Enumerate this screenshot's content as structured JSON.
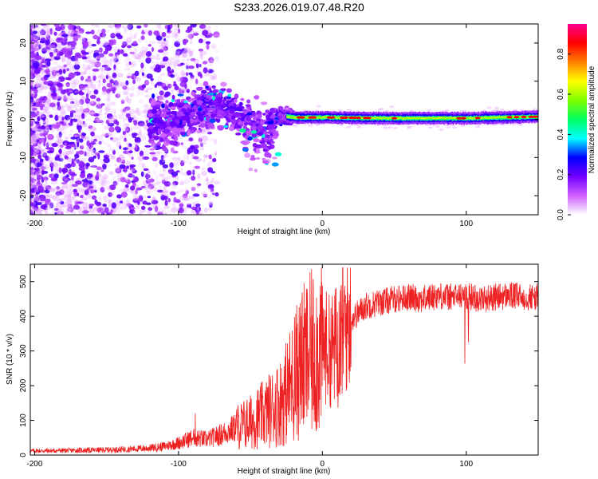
{
  "title": "S233.2026.019.07.48.R20",
  "chart_data": [
    {
      "type": "heatmap",
      "xlabel": "Height of straight line (km)",
      "ylabel": "Frequency (Hz)",
      "xlim": [
        -203,
        150
      ],
      "ylim": [
        -25,
        25
      ],
      "xticks": [
        -200,
        -100,
        0,
        100
      ],
      "yticks": [
        -20,
        -10,
        0,
        10,
        20
      ],
      "colorbar": {
        "label": "Normalized spectral amplitude",
        "range": [
          0,
          0.95
        ],
        "ticks": [
          0.0,
          0.2,
          0.4,
          0.6,
          0.8
        ],
        "colors": [
          "#ffffff",
          "#d060ff",
          "#7000ff",
          "#0000ff",
          "#00ffff",
          "#00ff60",
          "#80ff00",
          "#ffff00",
          "#ff8000",
          "#ff0000",
          "#ff0090"
        ]
      },
      "ridge": {
        "description_points_x": [
          -110,
          -100,
          -80,
          -60,
          -40,
          -30,
          -20,
          0,
          50,
          100,
          150
        ],
        "frequency_hz": [
          -1,
          0,
          4,
          2,
          -2,
          1,
          0.5,
          0.5,
          0.3,
          0.3,
          0.7
        ]
      }
    },
    {
      "type": "line",
      "xlabel": "Height of straight line (km)",
      "ylabel": "SNR (10 * v/v)",
      "xlim": [
        -203,
        150
      ],
      "ylim": [
        0,
        550
      ],
      "xticks": [
        -200,
        -100,
        0,
        100
      ],
      "yticks": [
        0,
        100,
        200,
        300,
        400,
        500
      ],
      "color": "#ee2222",
      "series": [
        {
          "name": "SNR",
          "x": [
            -200,
            -180,
            -160,
            -140,
            -120,
            -110,
            -100,
            -90,
            -80,
            -70,
            -60,
            -50,
            -40,
            -30,
            -25,
            -20,
            -15,
            -10,
            -5,
            0,
            5,
            10,
            15,
            20,
            25,
            30,
            40,
            50,
            60,
            70,
            80,
            90,
            100,
            110,
            120,
            130,
            140,
            150
          ],
          "y": [
            12,
            13,
            14,
            16,
            20,
            25,
            35,
            50,
            45,
            60,
            80,
            95,
            120,
            150,
            180,
            220,
            260,
            280,
            300,
            320,
            300,
            320,
            370,
            390,
            410,
            430,
            440,
            450,
            455,
            450,
            460,
            455,
            460,
            450,
            455,
            460,
            455,
            455
          ]
        }
      ]
    }
  ]
}
